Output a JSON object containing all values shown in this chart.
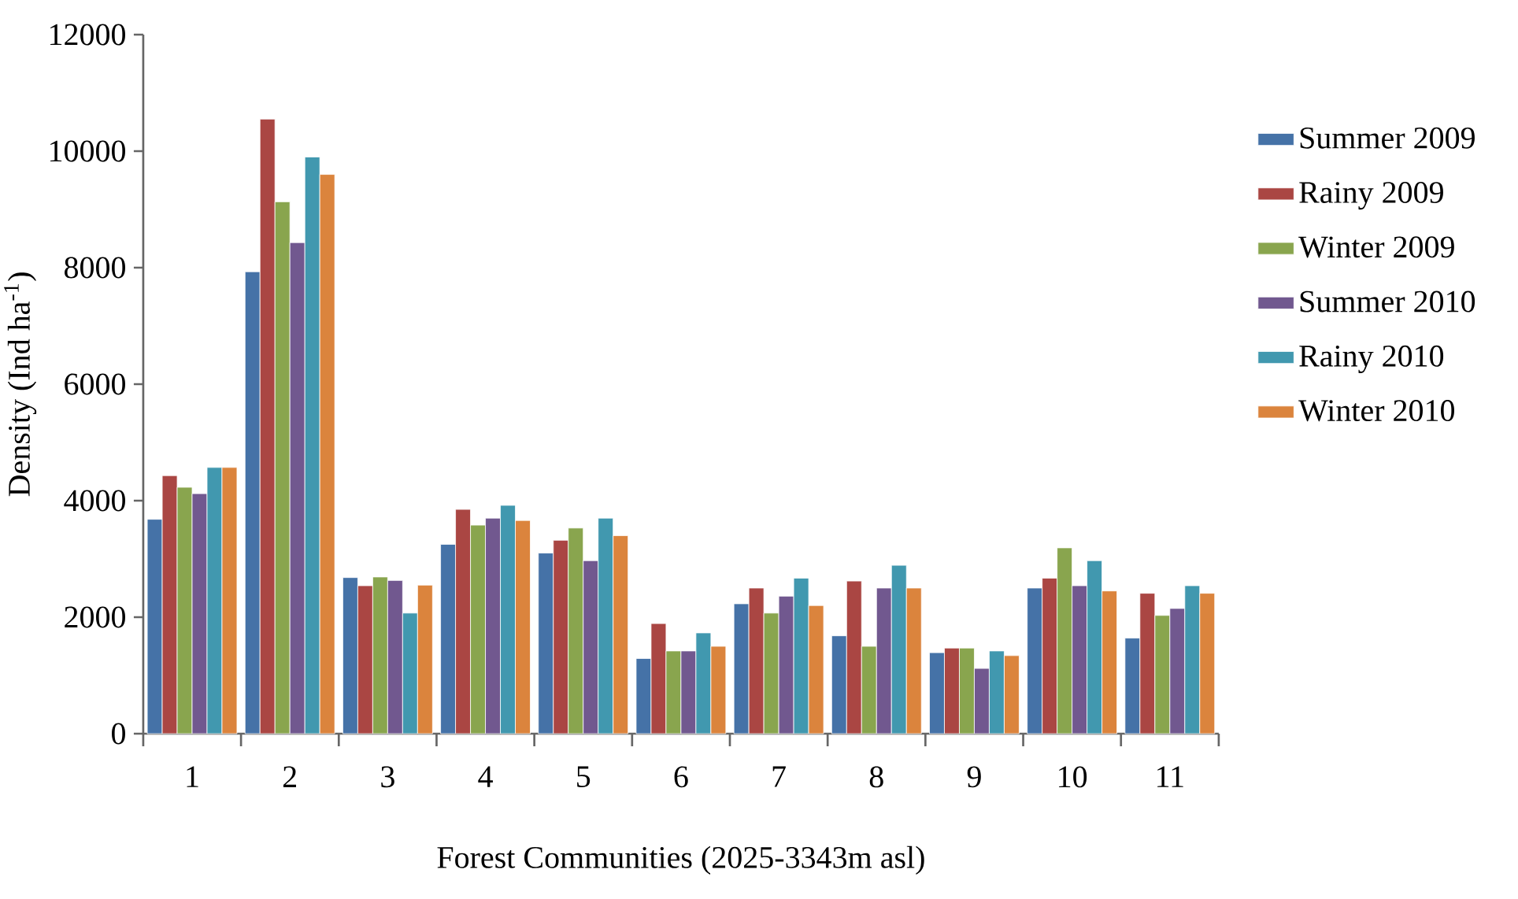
{
  "chart_data": {
    "type": "bar",
    "xlabel": "Forest Communities (2025-3343m asl)",
    "ylabel": "Density (Ind ha$^{-1}$)",
    "categories": [
      "1",
      "2",
      "3",
      "4",
      "5",
      "6",
      "7",
      "8",
      "9",
      "10",
      "11"
    ],
    "ylim": [
      0,
      12000
    ],
    "yticks": [
      0,
      2000,
      4000,
      6000,
      8000,
      10000,
      12000
    ],
    "grid": false,
    "legend": "right",
    "series": [
      {
        "name": "Summer 2009",
        "color": "#4572a7",
        "values": [
          3680,
          7930,
          2680,
          3250,
          3100,
          1290,
          2230,
          1680,
          1390,
          2500,
          1640
        ]
      },
      {
        "name": "Rainy 2009",
        "color": "#aa4643",
        "values": [
          4430,
          10550,
          2540,
          3850,
          3320,
          1890,
          2500,
          2620,
          1470,
          2670,
          2410
        ]
      },
      {
        "name": "Winter 2009",
        "color": "#89a54e",
        "values": [
          4230,
          9130,
          2690,
          3580,
          3530,
          1420,
          2070,
          1500,
          1470,
          3190,
          2030
        ]
      },
      {
        "name": "Summer 2010",
        "color": "#71588f",
        "values": [
          4120,
          8430,
          2630,
          3700,
          2970,
          1420,
          2360,
          2500,
          1120,
          2540,
          2150
        ]
      },
      {
        "name": "Rainy 2010",
        "color": "#4198af",
        "values": [
          4570,
          9900,
          2070,
          3920,
          3700,
          1730,
          2670,
          2890,
          1420,
          2970,
          2540
        ]
      },
      {
        "name": "Winter 2010",
        "color": "#db843d",
        "values": [
          4570,
          9600,
          2550,
          3660,
          3400,
          1500,
          2200,
          2500,
          1340,
          2450,
          2410
        ]
      }
    ]
  }
}
